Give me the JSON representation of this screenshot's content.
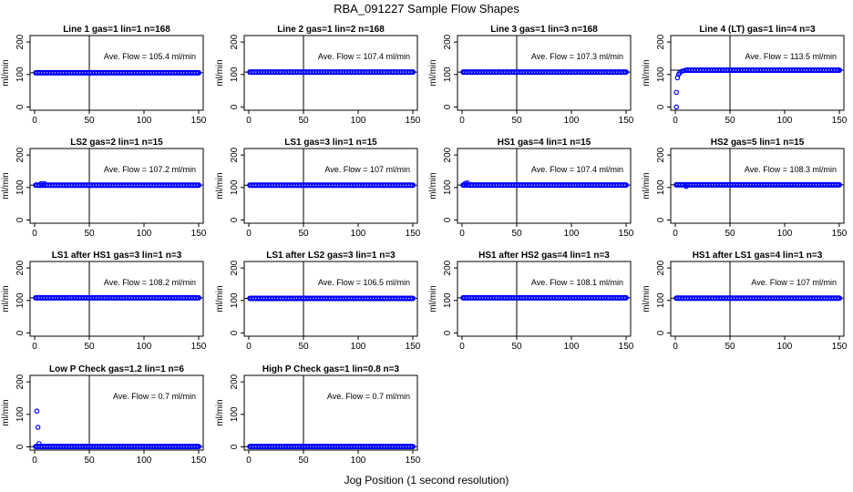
{
  "figure": {
    "title": "RBA_091227  Sample Flow Shapes",
    "xlabel": "Jog Position (1 second resolution)"
  },
  "style": {
    "point_color": "#0000ff",
    "line_color": "#000000"
  },
  "chart_data": [
    {
      "type": "scatter",
      "title": "Line 1 gas=1 lin=1 n=168",
      "ylabel": "ml/min",
      "xlim": [
        0,
        150
      ],
      "ylim": [
        -10,
        220
      ],
      "xticks": [
        0,
        50,
        100,
        150
      ],
      "yticks": [
        0,
        100,
        200
      ],
      "vline": 50,
      "avg_flow": 105.4,
      "annotation": "Ave. Flow =  105.4  ml/min",
      "x": [
        1,
        150
      ],
      "y": [
        105.4,
        105.4
      ],
      "outliers": []
    },
    {
      "type": "scatter",
      "title": "Line 2 gas=1 lin=2 n=168",
      "ylabel": "ml/min",
      "xlim": [
        0,
        150
      ],
      "ylim": [
        -10,
        220
      ],
      "xticks": [
        0,
        50,
        100,
        150
      ],
      "yticks": [
        0,
        100,
        200
      ],
      "vline": 50,
      "avg_flow": 107.4,
      "annotation": "Ave. Flow =  107.4  ml/min",
      "x": [
        1,
        150
      ],
      "y": [
        107.4,
        107.4
      ],
      "outliers": []
    },
    {
      "type": "scatter",
      "title": "Line 3 gas=1 lin=3 n=168",
      "ylabel": "ml/min",
      "xlim": [
        0,
        150
      ],
      "ylim": [
        -10,
        220
      ],
      "xticks": [
        0,
        50,
        100,
        150
      ],
      "yticks": [
        0,
        100,
        200
      ],
      "vline": 50,
      "avg_flow": 107.3,
      "annotation": "Ave. Flow =  107.3  ml/min",
      "x": [
        1,
        150
      ],
      "y": [
        107.3,
        107.3
      ],
      "outliers": []
    },
    {
      "type": "scatter",
      "title": "Line 4 (LT) gas=1 lin=4 n=3",
      "ylabel": "ml/min",
      "xlim": [
        0,
        150
      ],
      "ylim": [
        -10,
        220
      ],
      "xticks": [
        0,
        50,
        100,
        150
      ],
      "yticks": [
        0,
        100,
        200
      ],
      "vline": 50,
      "avg_flow": 113.5,
      "annotation": "Ave. Flow =  113.5  ml/min",
      "x": [
        10,
        150
      ],
      "y": [
        113.5,
        113.5
      ],
      "outliers": [
        [
          1,
          0
        ],
        [
          1,
          45
        ],
        [
          2,
          90
        ],
        [
          3,
          100
        ],
        [
          4,
          105
        ],
        [
          6,
          110
        ],
        [
          8,
          112
        ]
      ]
    },
    {
      "type": "scatter",
      "title": "LS2 gas=2 lin=1 n=15",
      "ylabel": "ml/min",
      "xlim": [
        0,
        150
      ],
      "ylim": [
        -10,
        220
      ],
      "xticks": [
        0,
        50,
        100,
        150
      ],
      "yticks": [
        0,
        100,
        200
      ],
      "vline": 50,
      "avg_flow": 107.2,
      "annotation": "Ave. Flow =  107.2  ml/min",
      "x": [
        1,
        150
      ],
      "y": [
        107.2,
        107.2
      ],
      "outliers": [
        [
          6,
          112
        ],
        [
          9,
          112
        ]
      ]
    },
    {
      "type": "scatter",
      "title": "LS1 gas=3 lin=1 n=15",
      "ylabel": "ml/min",
      "xlim": [
        0,
        150
      ],
      "ylim": [
        -10,
        220
      ],
      "xticks": [
        0,
        50,
        100,
        150
      ],
      "yticks": [
        0,
        100,
        200
      ],
      "vline": 50,
      "avg_flow": 107,
      "annotation": "Ave. Flow =  107  ml/min",
      "x": [
        1,
        150
      ],
      "y": [
        107,
        107
      ],
      "outliers": []
    },
    {
      "type": "scatter",
      "title": "HS1 gas=4 lin=1 n=15",
      "ylabel": "ml/min",
      "xlim": [
        0,
        150
      ],
      "ylim": [
        -10,
        220
      ],
      "xticks": [
        0,
        50,
        100,
        150
      ],
      "yticks": [
        0,
        100,
        200
      ],
      "vline": 50,
      "avg_flow": 107.4,
      "annotation": "Ave. Flow =  107.4  ml/min",
      "x": [
        1,
        150
      ],
      "y": [
        107.4,
        107.4
      ],
      "outliers": [
        [
          3,
          113
        ],
        [
          5,
          114
        ]
      ]
    },
    {
      "type": "scatter",
      "title": "HS2 gas=5 lin=1 n=15",
      "ylabel": "ml/min",
      "xlim": [
        0,
        150
      ],
      "ylim": [
        -10,
        220
      ],
      "xticks": [
        0,
        50,
        100,
        150
      ],
      "yticks": [
        0,
        100,
        200
      ],
      "vline": 50,
      "avg_flow": 108.3,
      "annotation": "Ave. Flow =  108.3  ml/min",
      "x": [
        1,
        150
      ],
      "y": [
        108.3,
        108.3
      ],
      "outliers": [
        [
          10,
          103
        ]
      ]
    },
    {
      "type": "scatter",
      "title": "LS1 after HS1 gas=3 lin=1 n=3",
      "ylabel": "ml/min",
      "xlim": [
        0,
        150
      ],
      "ylim": [
        -10,
        220
      ],
      "xticks": [
        0,
        50,
        100,
        150
      ],
      "yticks": [
        0,
        100,
        200
      ],
      "vline": 50,
      "avg_flow": 108.2,
      "annotation": "Ave. Flow =  108.2  ml/min",
      "x": [
        1,
        150
      ],
      "y": [
        108.2,
        108.2
      ],
      "outliers": []
    },
    {
      "type": "scatter",
      "title": "LS1 after LS2 gas=3 lin=1 n=3",
      "ylabel": "ml/min",
      "xlim": [
        0,
        150
      ],
      "ylim": [
        -10,
        220
      ],
      "xticks": [
        0,
        50,
        100,
        150
      ],
      "yticks": [
        0,
        100,
        200
      ],
      "vline": 50,
      "avg_flow": 106.5,
      "annotation": "Ave. Flow =  106.5  ml/min",
      "x": [
        1,
        150
      ],
      "y": [
        106.5,
        106.5
      ],
      "outliers": []
    },
    {
      "type": "scatter",
      "title": "HS1 after HS2 gas=4 lin=1 n=3",
      "ylabel": "ml/min",
      "xlim": [
        0,
        150
      ],
      "ylim": [
        -10,
        220
      ],
      "xticks": [
        0,
        50,
        100,
        150
      ],
      "yticks": [
        0,
        100,
        200
      ],
      "vline": 50,
      "avg_flow": 108.1,
      "annotation": "Ave. Flow =  108.1  ml/min",
      "x": [
        1,
        150
      ],
      "y": [
        108.1,
        108.1
      ],
      "outliers": []
    },
    {
      "type": "scatter",
      "title": "HS1 after LS1 gas=4 lin=1 n=3",
      "ylabel": "ml/min",
      "xlim": [
        0,
        150
      ],
      "ylim": [
        -10,
        220
      ],
      "xticks": [
        0,
        50,
        100,
        150
      ],
      "yticks": [
        0,
        100,
        200
      ],
      "vline": 50,
      "avg_flow": 107,
      "annotation": "Ave. Flow =  107  ml/min",
      "x": [
        1,
        150
      ],
      "y": [
        107,
        107
      ],
      "outliers": []
    },
    {
      "type": "scatter",
      "title": "Low P Check gas=1.2 lin=1 n=6",
      "ylabel": "ml/min",
      "xlim": [
        0,
        150
      ],
      "ylim": [
        -10,
        220
      ],
      "xticks": [
        0,
        50,
        100,
        150
      ],
      "yticks": [
        0,
        100,
        200
      ],
      "vline": 50,
      "avg_flow": 0.7,
      "annotation": "Ave. Flow =  0.7  ml/min",
      "x": [
        1,
        150
      ],
      "y": [
        0.7,
        0.7
      ],
      "outliers": [
        [
          2,
          110
        ],
        [
          3,
          60
        ],
        [
          4,
          10
        ]
      ]
    },
    {
      "type": "scatter",
      "title": "High P Check gas=1 lin=0.8 n=3",
      "ylabel": "ml/min",
      "xlim": [
        0,
        150
      ],
      "ylim": [
        -10,
        220
      ],
      "xticks": [
        0,
        50,
        100,
        150
      ],
      "yticks": [
        0,
        100,
        200
      ],
      "vline": 50,
      "avg_flow": 0.7,
      "annotation": "Ave. Flow =  0.7  ml/min",
      "x": [
        1,
        150
      ],
      "y": [
        0.7,
        0.7
      ],
      "outliers": []
    }
  ]
}
